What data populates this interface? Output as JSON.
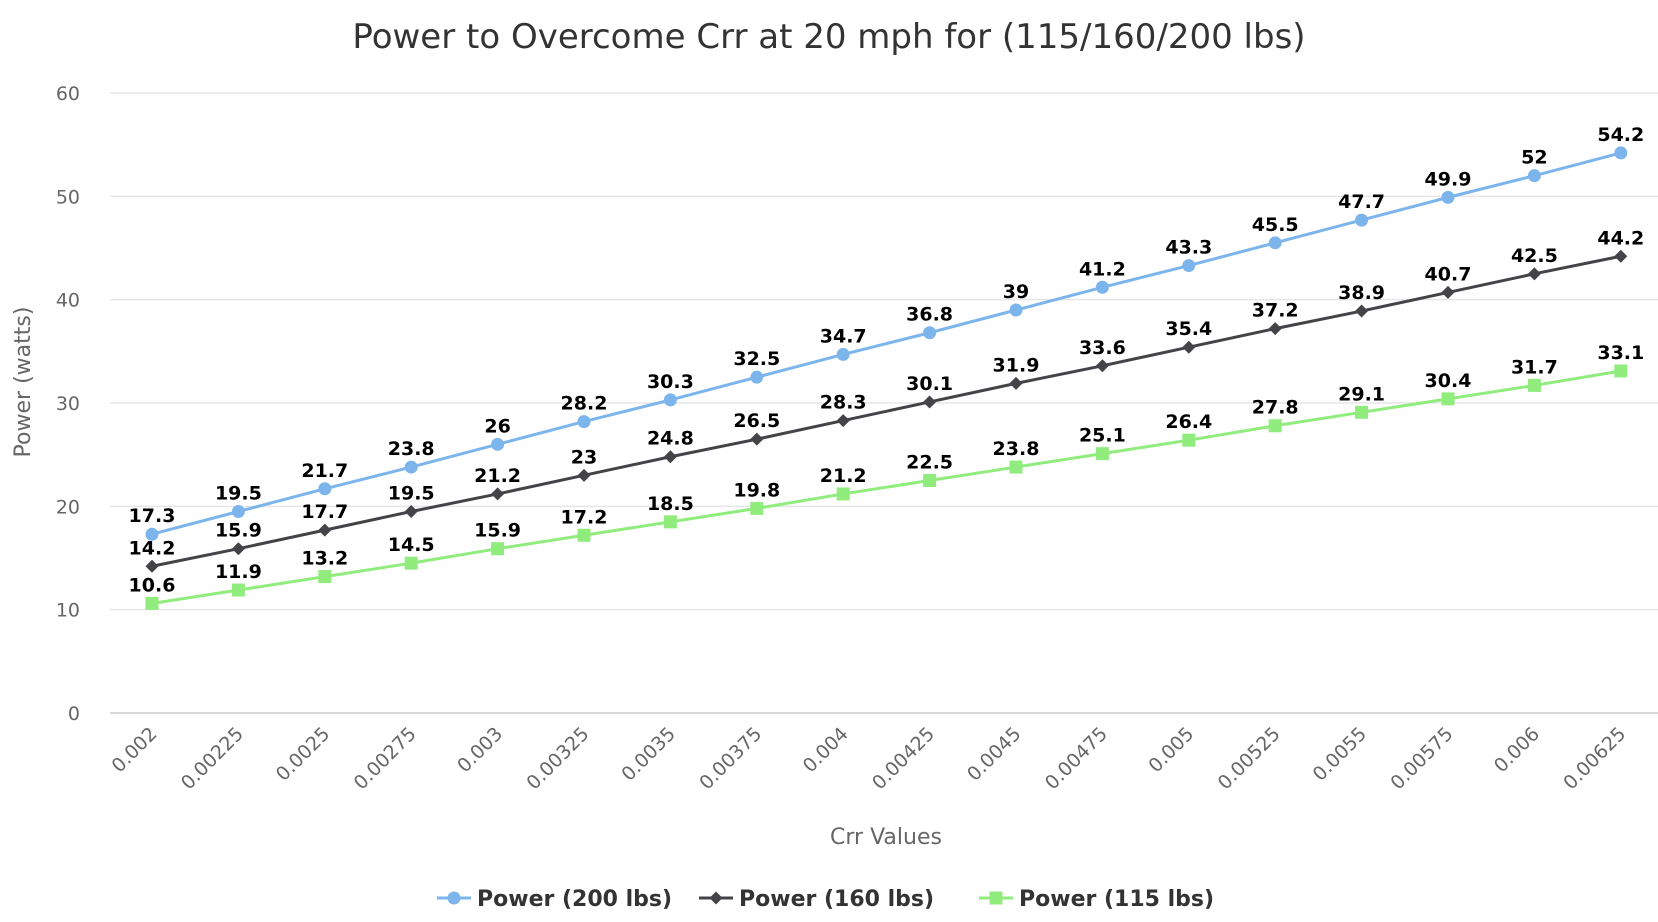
{
  "chart_data": {
    "type": "line",
    "title": "Power to Overcome Crr at 20 mph for (115/160/200 lbs)",
    "xlabel": "Crr Values",
    "ylabel": "Power (watts)",
    "ylim": [
      0,
      60
    ],
    "yticks": [
      "0",
      "10",
      "20",
      "30",
      "40",
      "50",
      "60"
    ],
    "grid": true,
    "legend_position": "bottom-center",
    "categories": [
      "0.002",
      "0.00225",
      "0.0025",
      "0.00275",
      "0.003",
      "0.00325",
      "0.0035",
      "0.00375",
      "0.004",
      "0.00425",
      "0.0045",
      "0.00475",
      "0.005",
      "0.00525",
      "0.0055",
      "0.00575",
      "0.006",
      "0.00625"
    ],
    "series": [
      {
        "name": "Power (200 lbs)",
        "color": "#7cb5ec",
        "marker": "circle",
        "values": [
          17.3,
          19.5,
          21.7,
          23.8,
          26,
          28.2,
          30.3,
          32.5,
          34.7,
          36.8,
          39,
          41.2,
          43.3,
          45.5,
          47.7,
          49.9,
          52,
          54.2
        ]
      },
      {
        "name": "Power (160 lbs)",
        "color": "#434348",
        "marker": "diamond",
        "values": [
          14.2,
          15.9,
          17.7,
          19.5,
          21.2,
          23,
          24.8,
          26.5,
          28.3,
          30.1,
          31.9,
          33.6,
          35.4,
          37.2,
          38.9,
          40.7,
          42.5,
          44.2
        ]
      },
      {
        "name": "Power (115 lbs)",
        "color": "#90ed7d",
        "marker": "square",
        "values": [
          10.6,
          11.9,
          13.2,
          14.5,
          15.9,
          17.2,
          18.5,
          19.8,
          21.2,
          22.5,
          23.8,
          25.1,
          26.4,
          27.8,
          29.1,
          30.4,
          31.7,
          33.1
        ]
      }
    ]
  }
}
